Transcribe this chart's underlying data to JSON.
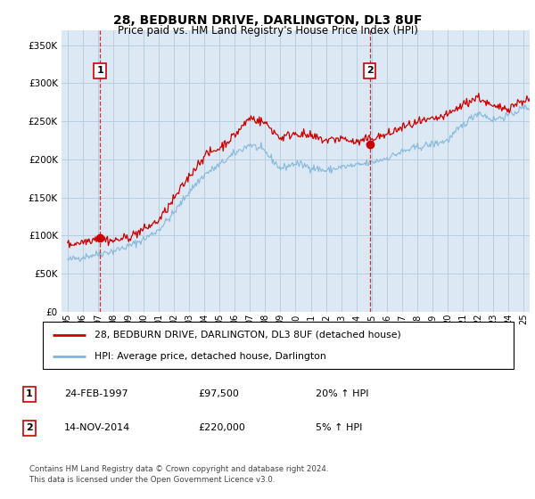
{
  "title": "28, BEDBURN DRIVE, DARLINGTON, DL3 8UF",
  "subtitle": "Price paid vs. HM Land Registry's House Price Index (HPI)",
  "plot_bg_color": "#dce9f5",
  "grid_color": "#c8d8ea",
  "sale1": {
    "date_num": 1997.13,
    "price": 97500,
    "label": "1",
    "date_str": "24-FEB-1997"
  },
  "sale2": {
    "date_num": 2014.87,
    "price": 220000,
    "label": "2",
    "date_str": "14-NOV-2014"
  },
  "hpi_line_color": "#7fb3d9",
  "price_line_color": "#cc0000",
  "dashed_line_color": "#cc0000",
  "marker_color": "#cc0000",
  "ylim": [
    0,
    370000
  ],
  "xlim_start": 1994.6,
  "xlim_end": 2025.4,
  "yticks": [
    0,
    50000,
    100000,
    150000,
    200000,
    250000,
    300000,
    350000
  ],
  "ytick_labels": [
    "£0",
    "£50K",
    "£100K",
    "£150K",
    "£200K",
    "£250K",
    "£300K",
    "£350K"
  ],
  "xtick_years": [
    1995,
    1996,
    1997,
    1998,
    1999,
    2000,
    2001,
    2002,
    2003,
    2004,
    2005,
    2006,
    2007,
    2008,
    2009,
    2010,
    2011,
    2012,
    2013,
    2014,
    2015,
    2016,
    2017,
    2018,
    2019,
    2020,
    2021,
    2022,
    2023,
    2024,
    2025
  ],
  "legend_red_label": "28, BEDBURN DRIVE, DARLINGTON, DL3 8UF (detached house)",
  "legend_blue_label": "HPI: Average price, detached house, Darlington",
  "footer": "Contains HM Land Registry data © Crown copyright and database right 2024.\nThis data is licensed under the Open Government Licence v3.0.",
  "table_rows": [
    {
      "num": "1",
      "date": "24-FEB-1997",
      "price": "£97,500",
      "pct": "20% ↑ HPI"
    },
    {
      "num": "2",
      "date": "14-NOV-2014",
      "price": "£220,000",
      "pct": "5% ↑ HPI"
    }
  ],
  "hpi_base": {
    "1995": 68000,
    "1996": 72000,
    "1997": 76000,
    "1998": 80000,
    "1999": 86000,
    "2000": 95000,
    "2001": 108000,
    "2002": 130000,
    "2003": 158000,
    "2004": 180000,
    "2005": 193000,
    "2006": 208000,
    "2007": 220000,
    "2008": 210000,
    "2009": 188000,
    "2010": 195000,
    "2011": 190000,
    "2012": 185000,
    "2013": 190000,
    "2014": 192000,
    "2015": 196000,
    "2016": 202000,
    "2017": 210000,
    "2018": 216000,
    "2019": 220000,
    "2020": 225000,
    "2021": 245000,
    "2022": 262000,
    "2023": 252000,
    "2024": 258000,
    "2025": 268000
  },
  "price_base": {
    "1995": 88000,
    "1996": 92000,
    "1997": 97500,
    "1998": 93000,
    "1999": 98000,
    "2000": 108000,
    "2001": 120000,
    "2002": 148000,
    "2003": 178000,
    "2004": 205000,
    "2005": 215000,
    "2006": 232000,
    "2007": 255000,
    "2008": 248000,
    "2009": 228000,
    "2010": 235000,
    "2011": 230000,
    "2012": 225000,
    "2013": 228000,
    "2014": 222000,
    "2015": 228000,
    "2016": 232000,
    "2017": 242000,
    "2018": 248000,
    "2019": 252000,
    "2020": 258000,
    "2021": 272000,
    "2022": 282000,
    "2023": 268000,
    "2024": 268000,
    "2025": 278000
  }
}
